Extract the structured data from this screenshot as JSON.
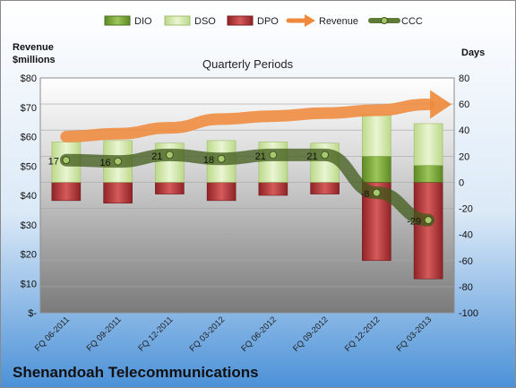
{
  "chart_data": {
    "type": "bar",
    "title": "Quarterly Periods",
    "company": "Shenandoah Telecommunications",
    "left_axis": {
      "title_line1": "Revenue",
      "title_line2": "$millions",
      "ylim": [
        0,
        80
      ],
      "ticks": [
        "$-",
        "$10",
        "$20",
        "$30",
        "$40",
        "$50",
        "$60",
        "$70",
        "$80"
      ]
    },
    "right_axis": {
      "title": "Days",
      "ylim": [
        -100,
        80
      ],
      "ticks": [
        "-100",
        "-80",
        "-60",
        "-40",
        "-20",
        "0",
        "20",
        "40",
        "60",
        "80"
      ]
    },
    "categories": [
      "FQ 06-2011",
      "FQ 09-2011",
      "FQ 12-2011",
      "FQ 03-2012",
      "FQ 06-2012",
      "FQ 09-2012",
      "FQ 12-2012",
      "FQ 03-2013"
    ],
    "legend": [
      "DIO",
      "DSO",
      "DPO",
      "Revenue",
      "CCC"
    ],
    "series": [
      {
        "name": "DIO",
        "axis": "days",
        "values": [
          0,
          0,
          0,
          0,
          0,
          0,
          20,
          13
        ]
      },
      {
        "name": "DSO",
        "axis": "days",
        "values": [
          31,
          32,
          30,
          32,
          31,
          30,
          32,
          32
        ]
      },
      {
        "name": "DPO",
        "axis": "days",
        "values": [
          -14,
          -16,
          -9,
          -14,
          -10,
          -9,
          -60,
          -74
        ]
      },
      {
        "name": "Revenue",
        "axis": "revenue",
        "values": [
          60,
          61,
          63,
          66,
          67,
          68,
          69,
          71
        ]
      },
      {
        "name": "CCC",
        "axis": "days",
        "values": [
          17,
          16,
          21,
          18,
          21,
          21,
          -8,
          -29
        ]
      }
    ],
    "ccc_labels": [
      "17",
      "16",
      "21",
      "18",
      "21",
      "21",
      "-8",
      "-29"
    ],
    "colors": {
      "DIO": "#7aa33a",
      "DSO": "#d8ebb0",
      "DPO": "#b9383a",
      "Revenue": "#ef8a3c",
      "CCC": "#5b7a2a"
    }
  }
}
